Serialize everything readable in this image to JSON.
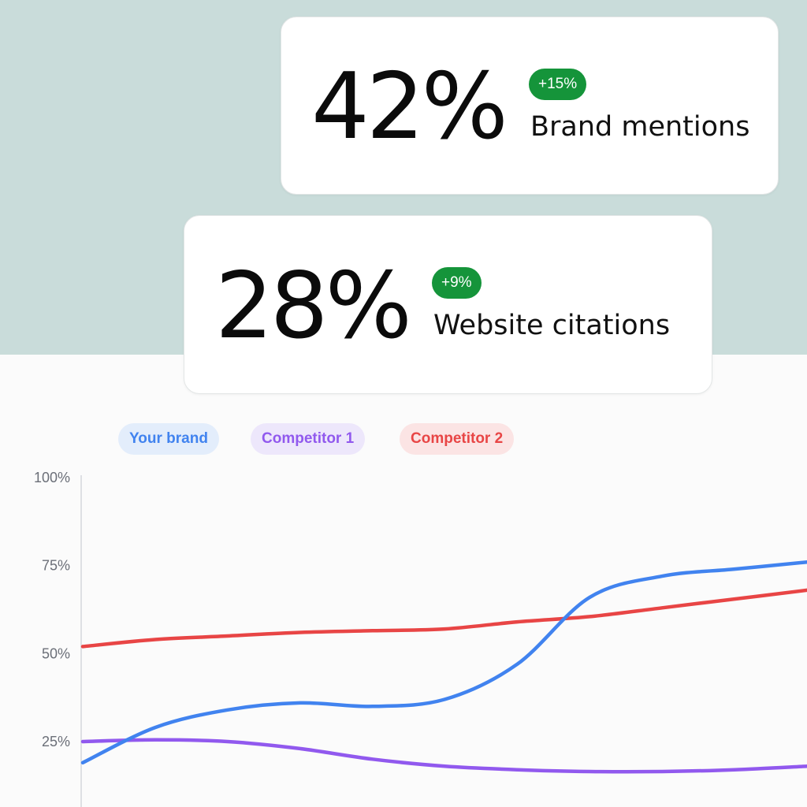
{
  "cards": [
    {
      "value": "42%",
      "change": "+15%",
      "label": "Brand mentions"
    },
    {
      "value": "28%",
      "change": "+9%",
      "label": "Website citations"
    }
  ],
  "colors": {
    "background_top": "#c9dcda",
    "badge": "#15943a",
    "your_brand": "#4183ef",
    "competitor_1": "#9159ee",
    "competitor_2": "#e84545"
  },
  "chart_data": {
    "type": "line",
    "title": "",
    "xlabel": "",
    "ylabel": "",
    "ylim": [
      0,
      100
    ],
    "yticks": [
      {
        "value": 100,
        "label": "100%"
      },
      {
        "value": 75,
        "label": "75%"
      },
      {
        "value": 50,
        "label": "50%"
      },
      {
        "value": 25,
        "label": "25%"
      }
    ],
    "grid": false,
    "legend_position": "top-left",
    "x": [
      0,
      1,
      2,
      3,
      4,
      5,
      6,
      7,
      8,
      9,
      10
    ],
    "series": [
      {
        "name": "Your brand",
        "color": "#4183ef",
        "pill_bg": "#e3edfb",
        "values": [
          19,
          29,
          34,
          36,
          35,
          37,
          47,
          66,
          72,
          74,
          76
        ]
      },
      {
        "name": "Competitor 1",
        "color": "#9159ee",
        "pill_bg": "#ede7fb",
        "values": [
          25,
          25.5,
          25,
          23,
          20,
          18,
          17,
          16.5,
          16.5,
          17,
          18
        ]
      },
      {
        "name": "Competitor 2",
        "color": "#e84545",
        "pill_bg": "#fbe4e4",
        "values": [
          52,
          54,
          55,
          56,
          56.5,
          57,
          59,
          60.5,
          63,
          65.5,
          68
        ]
      }
    ]
  }
}
